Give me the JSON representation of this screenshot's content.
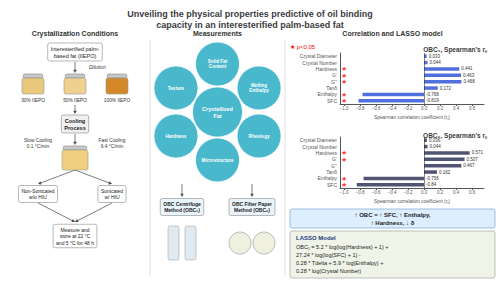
{
  "title": "Unveiling the physical properties predictive of oil binding\ncapacity in an interesterified palm-based fat",
  "sections": [
    {
      "title": "Crystallization Conditions",
      "source": "Interesterified palm-\nbased fat (IIEPO)",
      "dilution": "Dilution",
      "blends": [
        "30% IIEPO",
        "50% IIEPO",
        "100% IIEPO"
      ],
      "process": "Cooling\nProcess",
      "cooling": [
        "Slow Cooling\n0.1 °C/min",
        "Fast Cooling\n6.4 °C/min"
      ],
      "treatments": [
        "Non-Sonicated\nw/o HIU",
        "Sonicated\nw/ HIU"
      ],
      "storage": "Measure and\nstore at 22 °C\nand 5 °C for 48 h"
    },
    {
      "title": "Measurements",
      "center": "Crystallized\nFat",
      "properties": [
        "Solid Fat\nContent",
        "Melting\nEnthalpy",
        "Rheology",
        "Microstructure",
        "Hardness",
        "Texture"
      ],
      "methods": [
        "OBC Centrifuge\nMethod (OBC₁)",
        "OBC Filter Paper\nMethod (OBC₂)"
      ]
    },
    {
      "title": "Correlation and LASSO model",
      "significance_note": "★ p<0.05",
      "summary": [
        "↑ OBC = ↑ SFC, ↑ Enthalpy,",
        "↑ Hardness, ↓ δ"
      ],
      "model_title": "LASSO Model",
      "model": [
        "OBC₁ = 5.2 * log(log(Hardness) + 1) +",
        "27.24 * log(log(SFC) + 1) -",
        "0.28 * Tdelta + 5.9 * log(Enthalpy) +",
        "0.28 * log(Crystal Number)"
      ]
    }
  ],
  "chart_data": [
    {
      "type": "bar",
      "orientation": "horizontal",
      "title": "OBC₁, Spearman’s rₛ",
      "xlabel": "Spearman correlation coefficient (rₛ)",
      "categories": [
        "Crystal Diameter",
        "Crystal Number",
        "Hardness",
        "G’",
        "G’’",
        "Tanδ",
        "Enthalpy",
        "SFC"
      ],
      "values": [
        0.033,
        0.044,
        0.441,
        0.463,
        0.468,
        0.172,
        -0.768,
        -0.819
      ],
      "significant": [
        false,
        false,
        true,
        true,
        true,
        false,
        true,
        true
      ],
      "significance_marker": "★",
      "significance_color": "red",
      "xlim": [
        -1.05,
        0.75
      ],
      "xticks": [
        {
          "value": -1.0,
          "label": "−1.0"
        },
        {
          "value": -0.8,
          "label": "−0.8"
        },
        {
          "value": -0.6,
          "label": "−0.6"
        },
        {
          "value": -0.4,
          "label": "−0.4"
        },
        {
          "value": -0.2,
          "label": "−0.2"
        },
        {
          "value": 0,
          "label": "0.0"
        },
        0.2,
        0.4,
        0.6
      ],
      "grid": false,
      "data_labels": true
    },
    {
      "type": "bar",
      "orientation": "horizontal",
      "title": "OBC₂, Spearman’s rₛ",
      "xlabel": "Spearman correlation coefficient (rₛ)",
      "categories": [
        "Crystal Diameter",
        "Crystal Number",
        "Hardness",
        "G’",
        "G’’",
        "Tanδ",
        "Enthalpy",
        "SFC"
      ],
      "values": [
        0.036,
        0.044,
        0.571,
        0.507,
        0.467,
        0.162,
        -0.756,
        -0.84
      ],
      "significant": [
        false,
        false,
        true,
        true,
        false,
        false,
        true,
        true
      ],
      "significance_marker": "★",
      "significance_color": "red",
      "xlim": [
        -1.05,
        0.75
      ],
      "xticks": [
        {
          "value": -1.0,
          "label": "−1.0"
        },
        {
          "value": -0.8,
          "label": "−0.8"
        },
        {
          "value": -0.6,
          "label": "−0.6"
        },
        {
          "value": -0.4,
          "label": "−0.4"
        },
        {
          "value": -0.2,
          "label": "−0.2"
        },
        {
          "value": 0,
          "label": "0.0"
        },
        0.2,
        0.4,
        0.6
      ],
      "grid": false,
      "data_labels": true
    }
  ]
}
